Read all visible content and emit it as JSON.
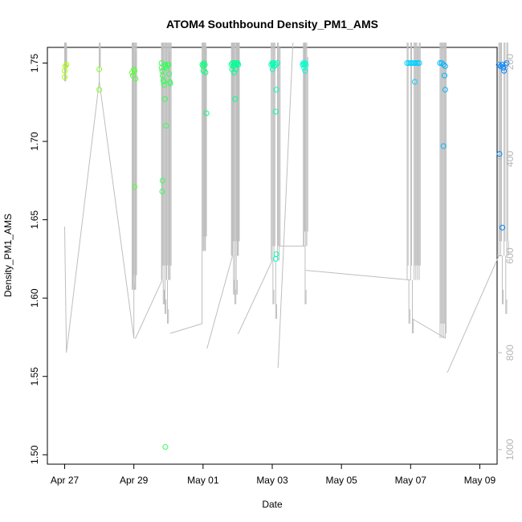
{
  "chart_data": {
    "type": "scatter",
    "title": "ATOM4 Southbound Density_PM1_AMS",
    "xlabel": "Date",
    "ylabel": "Density_PM1_AMS",
    "x_axis": {
      "range_days": [
        -0.5,
        12.5
      ],
      "ticks": [
        {
          "day": 0,
          "label": "Apr 27"
        },
        {
          "day": 2,
          "label": "Apr 29"
        },
        {
          "day": 4,
          "label": "May 01"
        },
        {
          "day": 6,
          "label": "May 03"
        },
        {
          "day": 8,
          "label": "May 05"
        },
        {
          "day": 10,
          "label": "May 07"
        },
        {
          "day": 12,
          "label": "May 09"
        }
      ]
    },
    "y_axis": {
      "range": [
        1.494,
        1.76
      ],
      "ticks": [
        "1.50",
        "1.55",
        "1.60",
        "1.65",
        "1.70",
        "1.75"
      ]
    },
    "y2_axis": {
      "range": [
        1030,
        170
      ],
      "ticks": [
        "200",
        "400",
        "600",
        "800",
        "1000"
      ],
      "color": "#b5b5b5"
    },
    "grid": false,
    "series": [
      {
        "role": "points",
        "color_by": "date",
        "color_scale": [
          "#a6ff00",
          "#00ff80",
          "#00ffff",
          "#0080ff"
        ],
        "points": [
          {
            "day": 0.0,
            "y": 1.741
          },
          {
            "day": 0.0,
            "y": 1.745
          },
          {
            "day": 0.02,
            "y": 1.748
          },
          {
            "day": 0.05,
            "y": 1.749
          },
          {
            "day": 1.0,
            "y": 1.746
          },
          {
            "day": 1.0,
            "y": 1.733
          },
          {
            "day": 1.95,
            "y": 1.744
          },
          {
            "day": 1.97,
            "y": 1.742
          },
          {
            "day": 2.0,
            "y": 1.746
          },
          {
            "day": 2.02,
            "y": 1.745
          },
          {
            "day": 2.05,
            "y": 1.74
          },
          {
            "day": 2.02,
            "y": 1.671
          },
          {
            "day": 2.8,
            "y": 1.75
          },
          {
            "day": 2.8,
            "y": 1.747
          },
          {
            "day": 2.82,
            "y": 1.745
          },
          {
            "day": 2.83,
            "y": 1.742
          },
          {
            "day": 2.85,
            "y": 1.739
          },
          {
            "day": 2.86,
            "y": 1.738
          },
          {
            "day": 2.88,
            "y": 1.736
          },
          {
            "day": 2.9,
            "y": 1.749
          },
          {
            "day": 2.92,
            "y": 1.748
          },
          {
            "day": 2.95,
            "y": 1.747
          },
          {
            "day": 2.97,
            "y": 1.749
          },
          {
            "day": 3.0,
            "y": 1.749
          },
          {
            "day": 3.02,
            "y": 1.743
          },
          {
            "day": 3.04,
            "y": 1.738
          },
          {
            "day": 3.05,
            "y": 1.737
          },
          {
            "day": 2.9,
            "y": 1.727
          },
          {
            "day": 2.93,
            "y": 1.71
          },
          {
            "day": 2.83,
            "y": 1.675
          },
          {
            "day": 2.82,
            "y": 1.668
          },
          {
            "day": 2.91,
            "y": 1.505
          },
          {
            "day": 3.98,
            "y": 1.749
          },
          {
            "day": 4.0,
            "y": 1.748
          },
          {
            "day": 4.02,
            "y": 1.75
          },
          {
            "day": 4.05,
            "y": 1.749
          },
          {
            "day": 4.01,
            "y": 1.745
          },
          {
            "day": 4.07,
            "y": 1.744
          },
          {
            "day": 4.1,
            "y": 1.718
          },
          {
            "day": 4.82,
            "y": 1.749
          },
          {
            "day": 4.85,
            "y": 1.75
          },
          {
            "day": 4.87,
            "y": 1.748
          },
          {
            "day": 4.9,
            "y": 1.75
          },
          {
            "day": 4.92,
            "y": 1.749
          },
          {
            "day": 4.95,
            "y": 1.75
          },
          {
            "day": 4.98,
            "y": 1.749
          },
          {
            "day": 5.0,
            "y": 1.75
          },
          {
            "day": 5.02,
            "y": 1.749
          },
          {
            "day": 4.84,
            "y": 1.746
          },
          {
            "day": 4.9,
            "y": 1.744
          },
          {
            "day": 4.95,
            "y": 1.746
          },
          {
            "day": 4.93,
            "y": 1.727
          },
          {
            "day": 5.97,
            "y": 1.749
          },
          {
            "day": 6.0,
            "y": 1.75
          },
          {
            "day": 6.02,
            "y": 1.749
          },
          {
            "day": 6.05,
            "y": 1.75
          },
          {
            "day": 6.1,
            "y": 1.749
          },
          {
            "day": 6.15,
            "y": 1.75
          },
          {
            "day": 6.01,
            "y": 1.746
          },
          {
            "day": 6.06,
            "y": 1.748
          },
          {
            "day": 6.12,
            "y": 1.733
          },
          {
            "day": 6.1,
            "y": 1.719
          },
          {
            "day": 6.12,
            "y": 1.628
          },
          {
            "day": 6.1,
            "y": 1.625
          },
          {
            "day": 6.88,
            "y": 1.749
          },
          {
            "day": 6.9,
            "y": 1.75
          },
          {
            "day": 6.92,
            "y": 1.749
          },
          {
            "day": 6.95,
            "y": 1.75
          },
          {
            "day": 6.97,
            "y": 1.749
          },
          {
            "day": 6.92,
            "y": 1.747
          },
          {
            "day": 6.95,
            "y": 1.745
          },
          {
            "day": 9.9,
            "y": 1.75
          },
          {
            "day": 9.95,
            "y": 1.75
          },
          {
            "day": 10.0,
            "y": 1.75
          },
          {
            "day": 10.05,
            "y": 1.75
          },
          {
            "day": 10.1,
            "y": 1.75
          },
          {
            "day": 10.15,
            "y": 1.75
          },
          {
            "day": 10.2,
            "y": 1.75
          },
          {
            "day": 10.25,
            "y": 1.75
          },
          {
            "day": 10.12,
            "y": 1.738
          },
          {
            "day": 10.85,
            "y": 1.75
          },
          {
            "day": 10.9,
            "y": 1.75
          },
          {
            "day": 10.95,
            "y": 1.749
          },
          {
            "day": 11.0,
            "y": 1.748
          },
          {
            "day": 10.98,
            "y": 1.742
          },
          {
            "day": 11.0,
            "y": 1.733
          },
          {
            "day": 10.95,
            "y": 1.697
          },
          {
            "day": 12.55,
            "y": 1.749
          },
          {
            "day": 12.6,
            "y": 1.748
          },
          {
            "day": 12.65,
            "y": 1.749
          },
          {
            "day": 12.68,
            "y": 1.747
          },
          {
            "day": 12.7,
            "y": 1.745
          },
          {
            "day": 12.75,
            "y": 1.749
          },
          {
            "day": 12.78,
            "y": 1.75
          },
          {
            "day": 12.57,
            "y": 1.692
          },
          {
            "day": 12.65,
            "y": 1.645
          }
        ]
      },
      {
        "role": "track",
        "axis": "y2",
        "color": "#bebebe",
        "bursts": [
          {
            "start": [
              0.0,
              540
            ],
            "bottom": [
              0.05,
              800
            ],
            "top": [
              1.0,
              240
            ],
            "spikes": [
              [
                0.0,
                160
              ],
              [
                0.02,
                160
              ],
              [
                0.03,
                170
              ],
              [
                1.0,
                170
              ],
              [
                1.0,
                160
              ]
            ]
          },
          {
            "start": [
              1.0,
              240
            ],
            "bottom": [
              2.0,
              770
            ],
            "top": [
              2.0,
              670
            ],
            "spikes": [
              [
                1.95,
                160
              ],
              [
                1.97,
                160
              ],
              [
                2.0,
                160
              ],
              [
                2.05,
                160
              ],
              [
                2.02,
                660
              ],
              [
                2.03,
                180
              ]
            ]
          },
          {
            "start": [
              2.02,
              770
            ],
            "bottom": [
              2.05,
              770
            ],
            "top": [
              2.82,
              650
            ],
            "spikes": [
              [
                2.8,
                160
              ],
              [
                2.82,
                160
              ],
              [
                2.85,
                700
              ],
              [
                2.87,
                160
              ],
              [
                2.9,
                720
              ],
              [
                2.92,
                160
              ],
              [
                2.95,
                160
              ],
              [
                2.97,
                740
              ],
              [
                3.0,
                160
              ],
              [
                3.02,
                180
              ],
              [
                3.05,
                160
              ]
            ]
          },
          {
            "start": [
              3.05,
              760
            ],
            "bottom": [
              3.97,
              740
            ],
            "top": [
              3.97,
              590
            ],
            "spikes": [
              [
                3.97,
                160
              ],
              [
                4.0,
                160
              ],
              [
                4.02,
                160
              ],
              [
                4.05,
                160
              ],
              [
                4.07,
                170
              ]
            ]
          },
          {
            "start": [
              4.1,
              790
            ],
            "bottom": [
              4.12,
              790
            ],
            "top": [
              4.85,
              600
            ],
            "spikes": [
              [
                4.82,
                160
              ],
              [
                4.84,
                160
              ],
              [
                4.86,
                160
              ],
              [
                4.88,
                680
              ],
              [
                4.9,
                160
              ],
              [
                4.92,
                700
              ],
              [
                4.94,
                160
              ],
              [
                4.96,
                680
              ],
              [
                4.98,
                160
              ],
              [
                5.0,
                160
              ],
              [
                5.02,
                160
              ]
            ]
          },
          {
            "start": [
              5.0,
              760
            ],
            "bottom": [
              5.02,
              760
            ],
            "top": [
              6.0,
              610
            ],
            "spikes": [
              [
                5.97,
                160
              ],
              [
                6.0,
                160
              ],
              [
                6.02,
                700
              ],
              [
                6.05,
                160
              ],
              [
                6.1,
                730
              ],
              [
                6.15,
                160
              ],
              [
                6.2,
                170
              ]
            ]
          },
          {
            "start": [
              6.15,
              830
            ],
            "bottom": [
              6.17,
              830
            ],
            "top": [
              6.6,
              160
            ],
            "spikes": []
          },
          {
            "start": [
              6.2,
              580
            ],
            "bottom": [
              6.22,
              580
            ],
            "top": [
              6.95,
              580
            ],
            "spikes": [
              [
                6.9,
                160
              ],
              [
                6.92,
                160
              ],
              [
                6.95,
                700
              ],
              [
                6.97,
                160
              ],
              [
                7.0,
                190
              ]
            ]
          },
          {
            "start": [
              6.97,
              630
            ],
            "bottom": [
              10.0,
              650
            ],
            "top": [
              10.0,
              650
            ],
            "spikes": [
              [
                9.9,
                160
              ],
              [
                9.95,
                740
              ],
              [
                10.0,
                160
              ],
              [
                10.05,
                760
              ],
              [
                10.1,
                160
              ],
              [
                10.15,
                160
              ],
              [
                10.2,
                170
              ],
              [
                10.25,
                160
              ]
            ]
          },
          {
            "start": [
              10.05,
              730
            ],
            "bottom": [
              11.0,
              770
            ],
            "top": [
              11.0,
              770
            ],
            "spikes": [
              [
                10.85,
                160
              ],
              [
                10.9,
                160
              ],
              [
                10.95,
                160
              ],
              [
                11.0,
                760
              ],
              [
                11.0,
                160
              ]
            ]
          },
          {
            "start": [
              11.05,
              840
            ],
            "bottom": [
              11.07,
              840
            ],
            "top": [
              12.55,
              600
            ],
            "spikes": [
              [
                12.55,
                160
              ],
              [
                12.6,
                160
              ],
              [
                12.65,
                700
              ],
              [
                12.7,
                160
              ],
              [
                12.75,
                720
              ],
              [
                12.78,
                160
              ],
              [
                12.8,
                600
              ]
            ]
          }
        ]
      }
    ]
  }
}
